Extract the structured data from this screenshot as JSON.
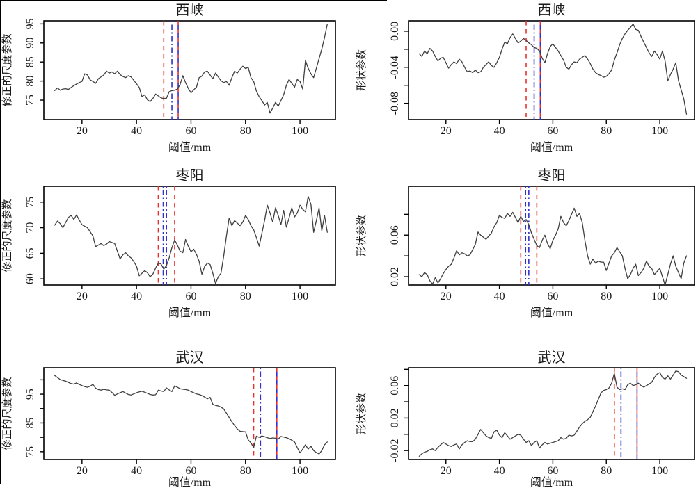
{
  "figure_title": "",
  "colors": {
    "series_line": "#3f3f3f",
    "red_vline": "#e8312d",
    "blue_vline": "#3431c8",
    "axis": "#000000",
    "text": "#1a1a1a",
    "background": "#ffffff"
  },
  "chart_data": [
    {
      "type": "line",
      "title": "西峡",
      "xlabel": "阈值/mm",
      "ylabel": "修正的尺度参数",
      "x_start": 10,
      "x_step": 1,
      "xlim": [
        6,
        113
      ],
      "ylim": [
        69.9,
        95.8
      ],
      "x_ticks": [
        20,
        40,
        60,
        80,
        100
      ],
      "y_ticks": [
        {
          "v": 75,
          "label": "75"
        },
        {
          "v": 80,
          "label": "80"
        },
        {
          "v": 85,
          "label": "85"
        },
        {
          "v": 90,
          "label": "90"
        },
        {
          "v": 95,
          "label": "95"
        }
      ],
      "grid": false,
      "legend": null,
      "vlines": [
        {
          "x": 50,
          "color": "red",
          "style": "dashed"
        },
        {
          "x": 53,
          "color": "blue",
          "style": "dashdot"
        },
        {
          "x": 55.3,
          "color": "red",
          "style": "dashed"
        },
        {
          "x": 55.3,
          "color": "blue",
          "style": "dashed-offset"
        }
      ],
      "y": [
        77.5,
        78.2,
        77.6,
        77.9,
        78.0,
        77.8,
        78.3,
        78.8,
        79.2,
        79.6,
        79.9,
        81.9,
        81.6,
        80.3,
        79.9,
        79.4,
        80.6,
        81.1,
        81.6,
        82.6,
        82.1,
        82.4,
        81.9,
        82.6,
        81.7,
        81.2,
        80.9,
        81.4,
        81.1,
        80.2,
        79.3,
        78.3,
        75.9,
        76.4,
        75.1,
        74.6,
        75.4,
        76.6,
        76.1,
        75.6,
        75.4,
        75.5,
        77.2,
        77.5,
        77.6,
        77.9,
        79.1,
        81.4,
        79.6,
        78.1,
        76.9,
        77.7,
        78.4,
        80.9,
        81.3,
        82.4,
        82.6,
        81.6,
        80.6,
        82.1,
        81.1,
        80.1,
        79.6,
        79.9,
        78.9,
        80.9,
        82.6,
        82.1,
        83.1,
        83.9,
        83.3,
        83.6,
        80.9,
        79.9,
        77.4,
        75.9,
        74.9,
        73.7,
        74.4,
        71.6,
        72.9,
        74.4,
        73.4,
        74.9,
        76.4,
        78.9,
        80.4,
        79.4,
        78.4,
        80.4,
        79.9,
        77.9,
        85.4,
        83.4,
        81.9,
        80.9,
        83.4,
        85.9,
        88.4,
        91.4,
        94.9
      ]
    },
    {
      "type": "line",
      "title": "西峡",
      "xlabel": "阈值/mm",
      "ylabel": "形状参数",
      "x_start": 10,
      "x_step": 1,
      "xlim": [
        6,
        113
      ],
      "ylim": [
        -0.098,
        0.0115
      ],
      "x_ticks": [
        20,
        40,
        60,
        80,
        100
      ],
      "y_ticks": [
        {
          "v": 0.0,
          "label": "0.00"
        },
        {
          "v": -0.02,
          "label": ""
        },
        {
          "v": -0.04,
          "label": "-0.04"
        },
        {
          "v": -0.06,
          "label": ""
        },
        {
          "v": -0.08,
          "label": "-0.08"
        }
      ],
      "grid": false,
      "legend": null,
      "vlines": [
        {
          "x": 50,
          "color": "red",
          "style": "dashed"
        },
        {
          "x": 53,
          "color": "blue",
          "style": "dashdot"
        },
        {
          "x": 55.3,
          "color": "red",
          "style": "dashed"
        },
        {
          "x": 55.3,
          "color": "blue",
          "style": "dashed-offset"
        }
      ],
      "y": [
        -0.025,
        -0.028,
        -0.022,
        -0.025,
        -0.019,
        -0.022,
        -0.028,
        -0.033,
        -0.03,
        -0.029,
        -0.035,
        -0.041,
        -0.037,
        -0.034,
        -0.036,
        -0.031,
        -0.034,
        -0.04,
        -0.045,
        -0.044,
        -0.046,
        -0.043,
        -0.046,
        -0.045,
        -0.04,
        -0.037,
        -0.034,
        -0.038,
        -0.04,
        -0.035,
        -0.029,
        -0.02,
        -0.012,
        -0.014,
        -0.007,
        -0.003,
        -0.008,
        -0.013,
        -0.011,
        -0.008,
        -0.01,
        -0.013,
        -0.015,
        -0.018,
        -0.019,
        -0.022,
        -0.03,
        -0.035,
        -0.025,
        -0.017,
        -0.014,
        -0.018,
        -0.022,
        -0.027,
        -0.032,
        -0.04,
        -0.042,
        -0.037,
        -0.034,
        -0.035,
        -0.031,
        -0.029,
        -0.027,
        -0.031,
        -0.036,
        -0.042,
        -0.046,
        -0.048,
        -0.049,
        -0.051,
        -0.05,
        -0.047,
        -0.043,
        -0.032,
        -0.024,
        -0.015,
        -0.008,
        -0.003,
        0.001,
        0.004,
        0.008,
        0.002,
        0.001,
        -0.006,
        -0.012,
        -0.018,
        -0.024,
        -0.028,
        -0.022,
        -0.026,
        -0.031,
        -0.022,
        -0.033,
        -0.055,
        -0.048,
        -0.042,
        -0.035,
        -0.055,
        -0.065,
        -0.075,
        -0.092
      ]
    },
    {
      "type": "line",
      "title": "枣阳",
      "xlabel": "阈值/mm",
      "ylabel": "修正的尺度参数",
      "x_start": 10,
      "x_step": 1,
      "xlim": [
        6,
        113
      ],
      "ylim": [
        58.8,
        78.1
      ],
      "x_ticks": [
        20,
        40,
        60,
        80,
        100
      ],
      "y_ticks": [
        {
          "v": 60,
          "label": "60"
        },
        {
          "v": 65,
          "label": "65"
        },
        {
          "v": 70,
          "label": "70"
        },
        {
          "v": 75,
          "label": "75"
        }
      ],
      "grid": false,
      "legend": null,
      "vlines": [
        {
          "x": 48,
          "color": "red",
          "style": "dashed"
        },
        {
          "x": 49.8,
          "color": "blue",
          "style": "dashdot"
        },
        {
          "x": 51,
          "color": "blue",
          "style": "dashdot"
        },
        {
          "x": 54,
          "color": "red",
          "style": "dashed"
        }
      ],
      "y": [
        70.5,
        71.3,
        70.8,
        70.0,
        71.0,
        72.0,
        72.4,
        71.6,
        72.5,
        71.5,
        70.6,
        70.3,
        70.0,
        69.2,
        68.4,
        66.3,
        66.6,
        66.9,
        66.5,
        66.8,
        67.3,
        67.1,
        66.9,
        65.4,
        63.9,
        64.7,
        65.1,
        64.5,
        64.1,
        63.4,
        62.5,
        60.6,
        61.1,
        61.6,
        61.2,
        60.4,
        60.9,
        62.1,
        63.1,
        62.9,
        61.9,
        62.6,
        64.1,
        66.1,
        67.6,
        66.6,
        65.4,
        65.1,
        67.7,
        66.4,
        65.3,
        65.8,
        64.8,
        63.4,
        60.9,
        62.4,
        63.1,
        62.8,
        61.1,
        59.1,
        60.4,
        61.1,
        64.4,
        68.4,
        71.9,
        70.4,
        71.4,
        70.9,
        70.4,
        71.1,
        72.4,
        71.6,
        70.4,
        69.6,
        68.1,
        66.4,
        68.9,
        71.4,
        74.4,
        72.9,
        71.1,
        73.9,
        72.4,
        70.6,
        73.4,
        70.1,
        71.9,
        73.9,
        72.1,
        72.9,
        74.4,
        73.6,
        73.1,
        76.1,
        74.6,
        69.1,
        71.4,
        73.9,
        69.4,
        72.4,
        69.1
      ]
    },
    {
      "type": "line",
      "title": "枣阳",
      "xlabel": "阈值/mm",
      "ylabel": "形状参数",
      "x_start": 10,
      "x_step": 1,
      "xlim": [
        6,
        113
      ],
      "ylim": [
        0.012,
        0.107
      ],
      "x_ticks": [
        20,
        40,
        60,
        80,
        100
      ],
      "y_ticks": [
        {
          "v": 0.02,
          "label": "0.02"
        },
        {
          "v": 0.04,
          "label": ""
        },
        {
          "v": 0.06,
          "label": "0.06"
        },
        {
          "v": 0.08,
          "label": ""
        }
      ],
      "grid": false,
      "legend": null,
      "vlines": [
        {
          "x": 48,
          "color": "red",
          "style": "dashed"
        },
        {
          "x": 49.8,
          "color": "blue",
          "style": "dashdot"
        },
        {
          "x": 51,
          "color": "blue",
          "style": "dashdot"
        },
        {
          "x": 54,
          "color": "red",
          "style": "dashed"
        }
      ],
      "y": [
        0.022,
        0.02,
        0.024,
        0.022,
        0.016,
        0.013,
        0.019,
        0.014,
        0.018,
        0.023,
        0.027,
        0.03,
        0.032,
        0.038,
        0.045,
        0.041,
        0.043,
        0.042,
        0.04,
        0.041,
        0.046,
        0.051,
        0.063,
        0.06,
        0.058,
        0.056,
        0.059,
        0.062,
        0.068,
        0.072,
        0.079,
        0.077,
        0.076,
        0.081,
        0.078,
        0.082,
        0.077,
        0.072,
        0.078,
        0.073,
        0.075,
        0.07,
        0.062,
        0.056,
        0.05,
        0.048,
        0.055,
        0.06,
        0.052,
        0.047,
        0.055,
        0.06,
        0.066,
        0.078,
        0.072,
        0.069,
        0.074,
        0.08,
        0.086,
        0.078,
        0.081,
        0.072,
        0.055,
        0.04,
        0.032,
        0.037,
        0.033,
        0.035,
        0.034,
        0.034,
        0.026,
        0.033,
        0.04,
        0.043,
        0.048,
        0.044,
        0.04,
        0.028,
        0.018,
        0.022,
        0.028,
        0.032,
        0.021,
        0.024,
        0.028,
        0.035,
        0.03,
        0.028,
        0.022,
        0.025,
        0.028,
        0.02,
        0.012,
        0.022,
        0.032,
        0.04,
        0.03,
        0.024,
        0.018,
        0.033,
        0.04
      ]
    },
    {
      "type": "line",
      "title": "武汉",
      "xlabel": "阈值/mm",
      "ylabel": "修正的尺度参数",
      "x_start": 10,
      "x_step": 1,
      "xlim": [
        6,
        113
      ],
      "ylim": [
        72.3,
        104.2
      ],
      "x_ticks": [
        20,
        40,
        60,
        80,
        100
      ],
      "y_ticks": [
        {
          "v": 75,
          "label": "75"
        },
        {
          "v": 80,
          "label": ""
        },
        {
          "v": 85,
          "label": "85"
        },
        {
          "v": 90,
          "label": ""
        },
        {
          "v": 95,
          "label": "95"
        },
        {
          "v": 100,
          "label": ""
        }
      ],
      "grid": false,
      "legend": null,
      "vlines": [
        {
          "x": 83,
          "color": "red",
          "style": "dashed"
        },
        {
          "x": 85.5,
          "color": "blue",
          "style": "dashdot"
        },
        {
          "x": 91.5,
          "color": "red",
          "style": "dashed"
        },
        {
          "x": 91.5,
          "color": "blue",
          "style": "dashed-offset"
        }
      ],
      "y": [
        101.5,
        100.8,
        100.1,
        99.8,
        99.5,
        99.1,
        98.7,
        98.5,
        98.9,
        98.4,
        98.0,
        97.6,
        97.4,
        97.8,
        98.4,
        97.1,
        96.6,
        96.4,
        96.7,
        96.5,
        96.4,
        95.6,
        94.6,
        95.1,
        95.5,
        95.9,
        95.4,
        94.9,
        94.7,
        95.1,
        95.5,
        95.8,
        96.0,
        95.7,
        95.3,
        94.9,
        94.7,
        94.8,
        96.4,
        96.1,
        95.9,
        97.2,
        96.5,
        95.9,
        97.9,
        97.4,
        96.9,
        96.7,
        96.6,
        96.4,
        95.9,
        95.5,
        95.1,
        94.9,
        94.5,
        94.0,
        93.4,
        93.9,
        91.5,
        91.1,
        90.9,
        90.5,
        89.9,
        88.4,
        86.9,
        85.4,
        84.1,
        82.9,
        82.1,
        82.0,
        81.9,
        79.1,
        78.1,
        76.4,
        80.4,
        80.0,
        80.5,
        80.2,
        79.9,
        79.6,
        79.8,
        79.7,
        79.4,
        80.3,
        80.1,
        79.9,
        79.5,
        79.0,
        78.4,
        76.4,
        74.6,
        75.9,
        77.4,
        75.9,
        76.9,
        75.4,
        74.7,
        74.2,
        75.4,
        77.4,
        78.4
      ]
    },
    {
      "type": "line",
      "title": "武汉",
      "xlabel": "阈值/mm",
      "ylabel": "形状参数",
      "x_start": 10,
      "x_step": 1,
      "xlim": [
        6,
        113
      ],
      "ylim": [
        -0.031,
        0.082
      ],
      "x_ticks": [
        20,
        40,
        60,
        80,
        100
      ],
      "y_ticks": [
        {
          "v": -0.02,
          "label": "-0.02"
        },
        {
          "v": 0.0,
          "label": ""
        },
        {
          "v": 0.02,
          "label": "0.02"
        },
        {
          "v": 0.04,
          "label": ""
        },
        {
          "v": 0.06,
          "label": "0.06"
        },
        {
          "v": 0.08,
          "label": ""
        }
      ],
      "grid": false,
      "legend": null,
      "vlines": [
        {
          "x": 83,
          "color": "red",
          "style": "dashed"
        },
        {
          "x": 85.5,
          "color": "blue",
          "style": "dashdot"
        },
        {
          "x": 91.5,
          "color": "red",
          "style": "dashed"
        },
        {
          "x": 91.5,
          "color": "blue",
          "style": "dashed-offset"
        }
      ],
      "y": [
        -0.027,
        -0.024,
        -0.022,
        -0.021,
        -0.019,
        -0.018,
        -0.02,
        -0.016,
        -0.013,
        -0.01,
        -0.012,
        -0.014,
        -0.015,
        -0.013,
        -0.012,
        -0.018,
        -0.013,
        -0.01,
        -0.008,
        -0.009,
        -0.009,
        -0.006,
        0.0,
        0.006,
        0.002,
        -0.002,
        -0.004,
        -0.005,
        0.003,
        0.005,
        -0.001,
        -0.004,
        0.002,
        -0.002,
        -0.006,
        -0.004,
        -0.002,
        0.0,
        -0.001,
        -0.006,
        -0.01,
        -0.008,
        -0.014,
        -0.01,
        -0.008,
        -0.017,
        -0.013,
        -0.01,
        -0.012,
        -0.011,
        -0.01,
        -0.009,
        -0.008,
        -0.004,
        -0.006,
        -0.005,
        -0.001,
        -0.002,
        -0.001,
        0.004,
        0.009,
        0.013,
        0.016,
        0.018,
        0.021,
        0.028,
        0.035,
        0.043,
        0.051,
        0.054,
        0.055,
        0.057,
        0.063,
        0.075,
        0.058,
        0.055,
        0.056,
        0.055,
        0.061,
        0.063,
        0.06,
        0.061,
        0.063,
        0.06,
        0.058,
        0.06,
        0.062,
        0.064,
        0.07,
        0.074,
        0.076,
        0.07,
        0.068,
        0.072,
        0.068,
        0.073,
        0.078,
        0.077,
        0.073,
        0.071,
        0.069
      ]
    }
  ]
}
